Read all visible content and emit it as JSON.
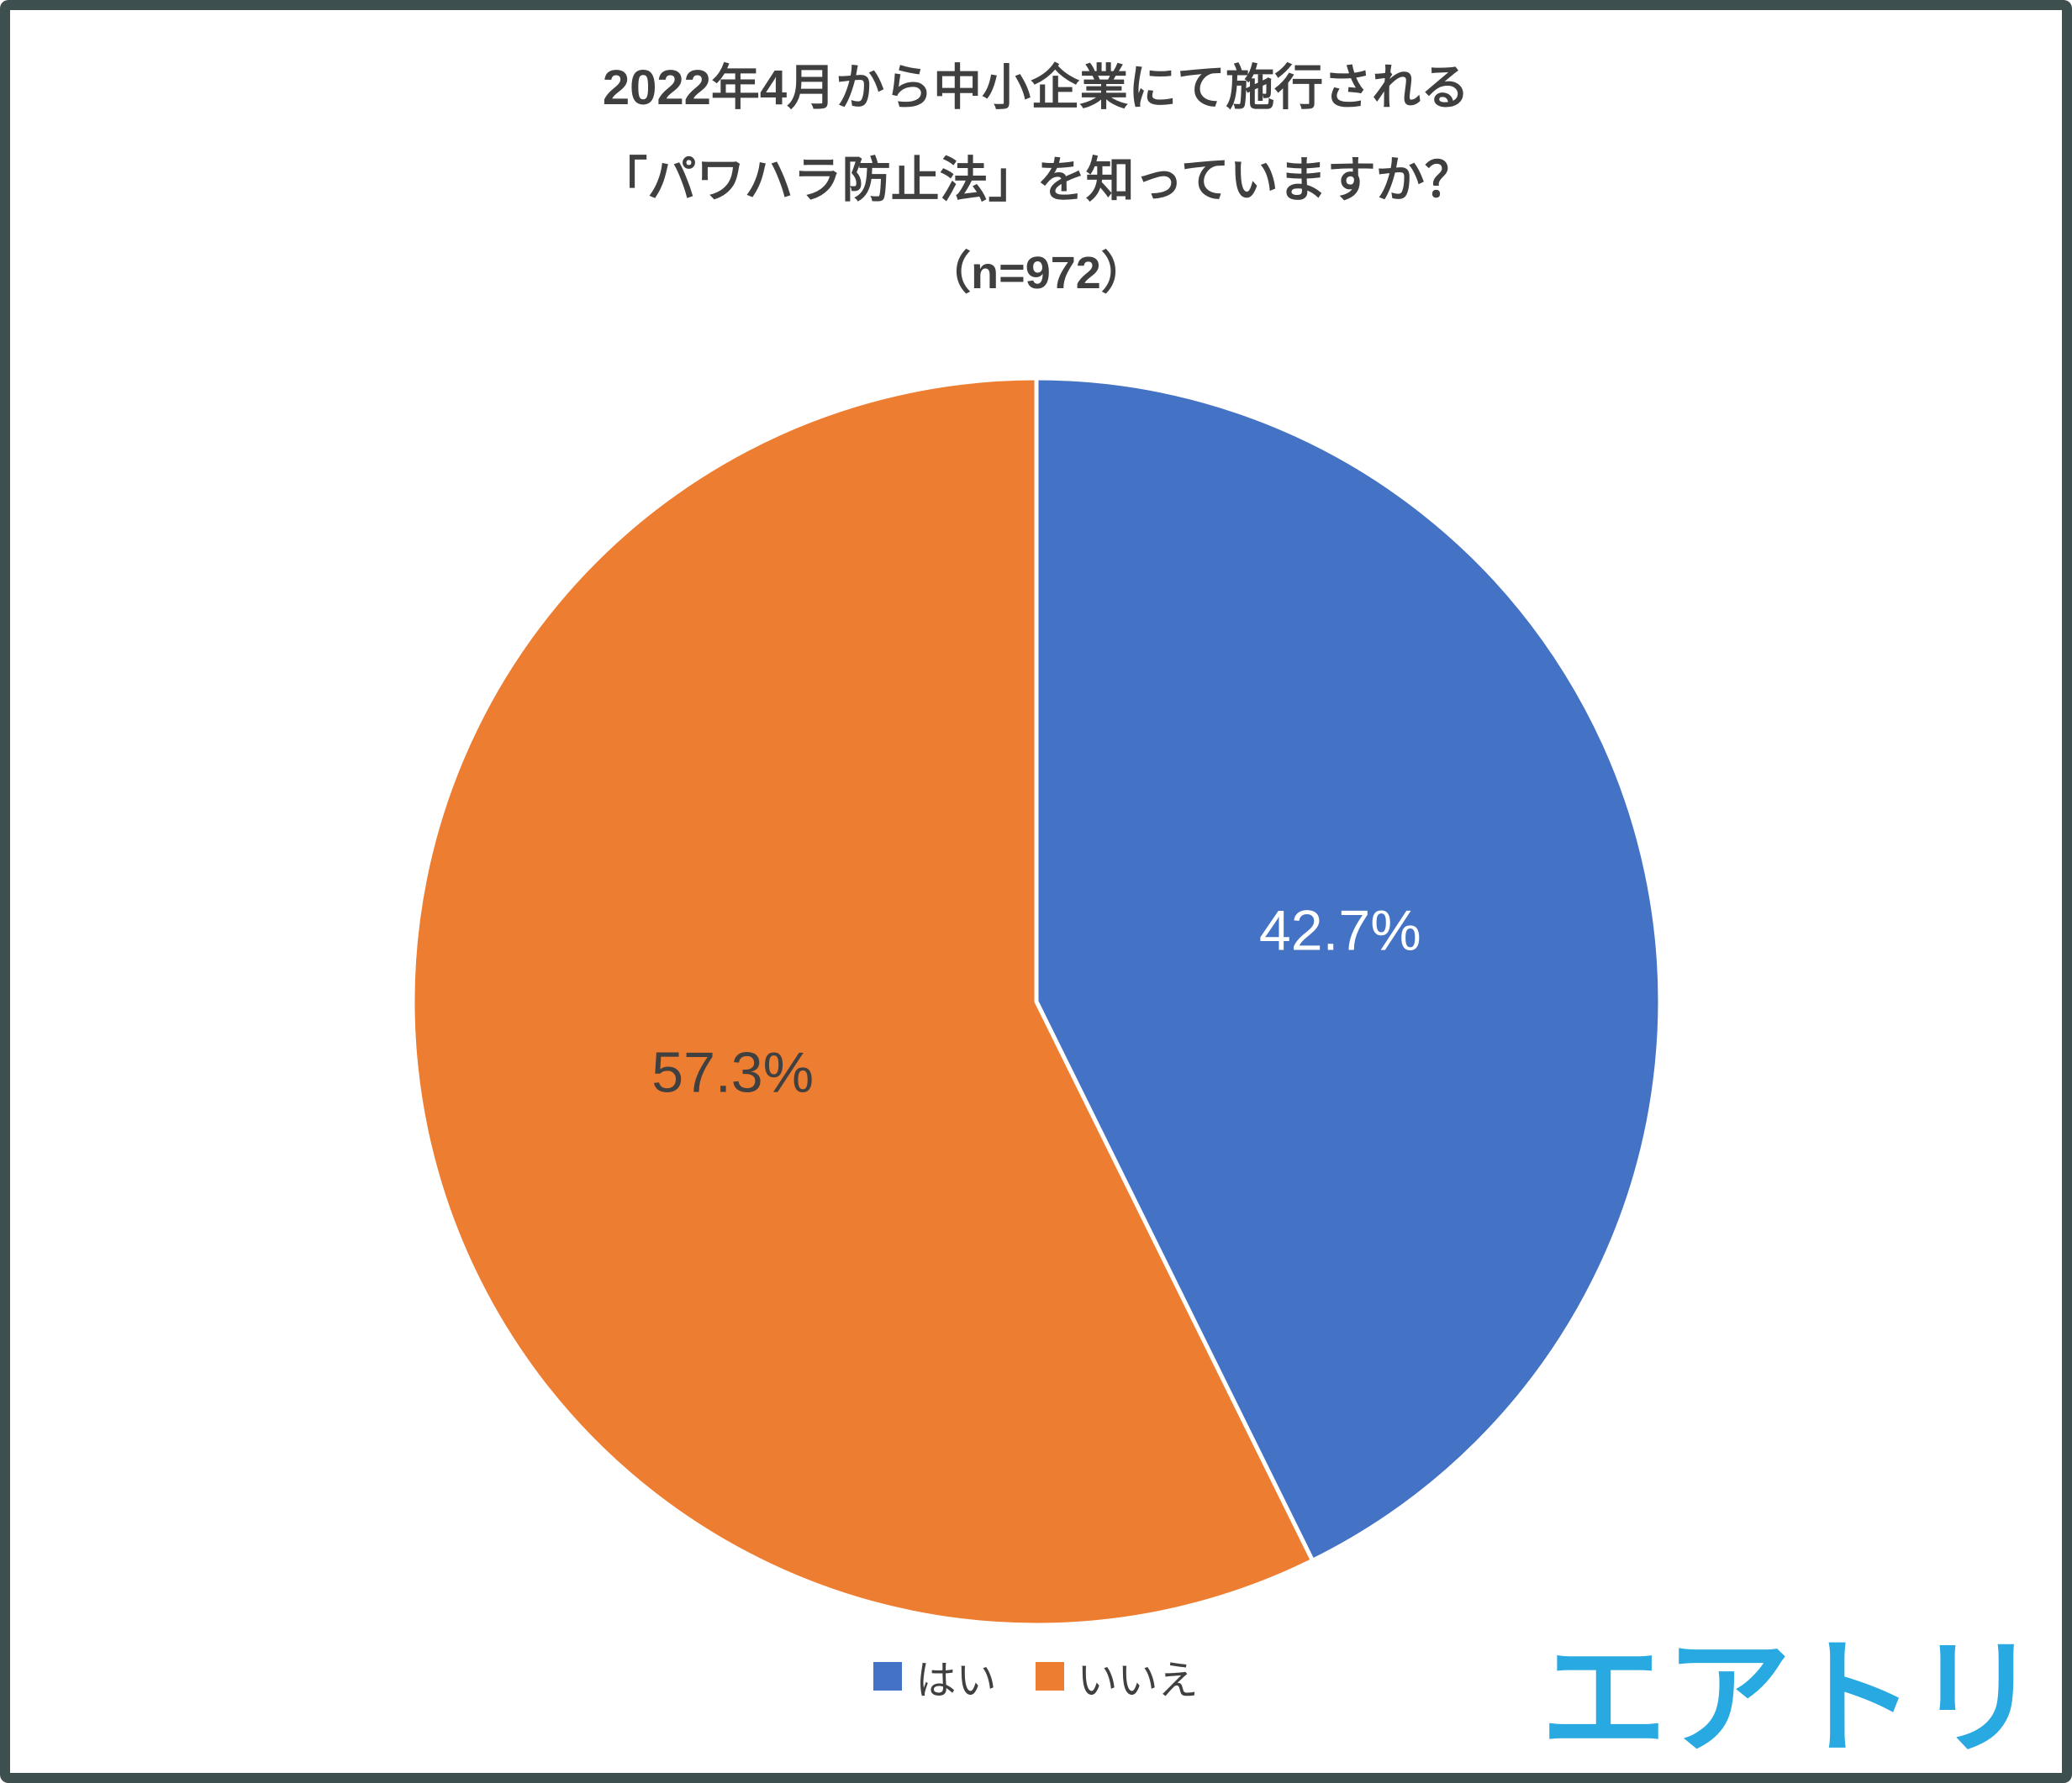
{
  "title": {
    "lines": [
      "2022年4月から中小企業にて施行される",
      "「パワハラ防止法」を知っていますか？",
      "（n=972）"
    ]
  },
  "chart_data": {
    "type": "pie",
    "title": "2022年4月から中小企業にて施行される「パワハラ防止法」を知っていますか？",
    "sample_label": "（n=972）",
    "labels": [
      "はい",
      "いいえ"
    ],
    "values": [
      42.7,
      57.3
    ],
    "unit": "%",
    "data_labels": [
      "42.7%",
      "57.3%"
    ],
    "data_label_colors": [
      "#ffffff",
      "#404040"
    ],
    "colors": [
      "#4472c4",
      "#ed7d31"
    ],
    "start_angle": 0,
    "direction": "clockwise",
    "legend_position": "bottom"
  },
  "legend": {
    "items": [
      {
        "label": "はい",
        "color": "#4472c4"
      },
      {
        "label": "いいえ",
        "color": "#ed7d31"
      }
    ]
  },
  "logo": {
    "text": "エアトリ",
    "color": "#29a9e1"
  }
}
